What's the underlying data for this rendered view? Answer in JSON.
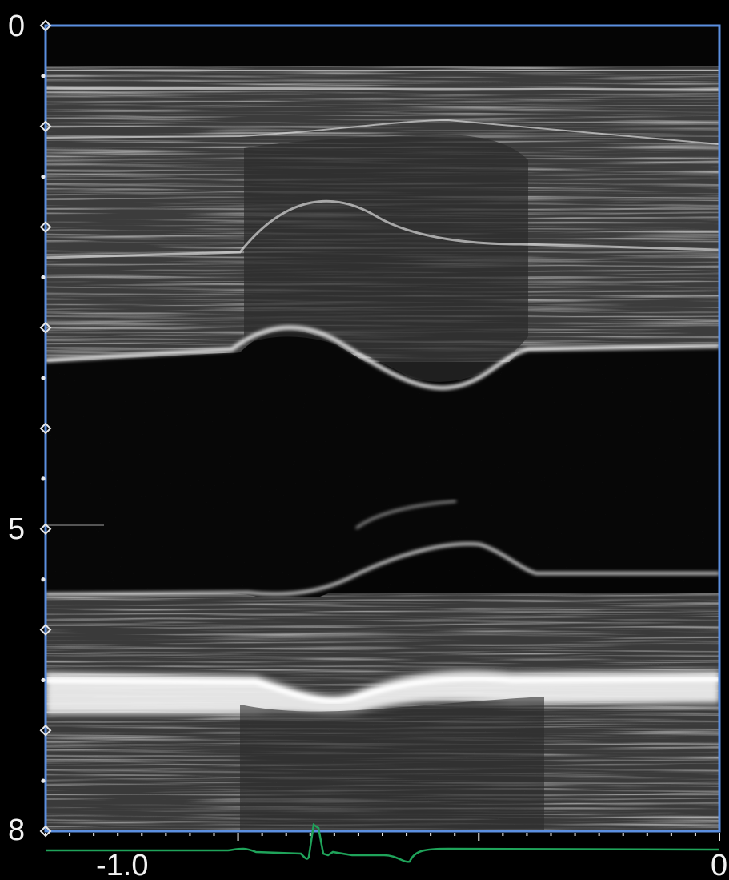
{
  "depth_axis": {
    "labels": [
      "0",
      "5",
      "8"
    ],
    "range": [
      0,
      8
    ],
    "minor_tick_step": 0.5
  },
  "time_axis": {
    "labels": [
      "-1.0",
      "0"
    ],
    "range": [
      -1.4,
      0
    ]
  },
  "colors": {
    "frame": "#5b8fe0",
    "ecg_trace": "#1fa35a",
    "text": "#f2f2f2",
    "background": "#000000"
  }
}
